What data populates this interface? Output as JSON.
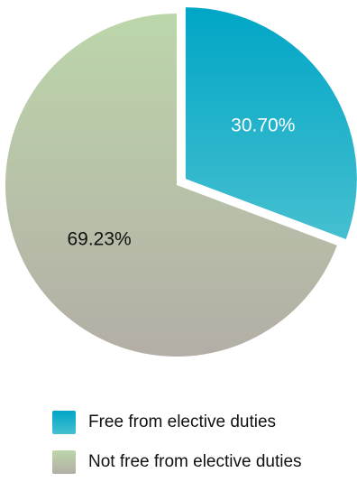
{
  "chart_data": {
    "type": "pie",
    "slices": [
      {
        "label": "Free from elective duties",
        "value": 30.7,
        "display": "30.70%",
        "color": "#1aa7c8",
        "exploded": true
      },
      {
        "label": "Not free from elective duties",
        "value": 69.23,
        "display": "69.23%",
        "color": "#b7c9a6",
        "exploded": false
      }
    ],
    "legend": {
      "position": "bottom",
      "items": [
        {
          "label": "Free from elective duties",
          "color": "#1aa7c8"
        },
        {
          "label": "Not free from elective duties",
          "color": "#b7c9a6"
        }
      ]
    }
  }
}
